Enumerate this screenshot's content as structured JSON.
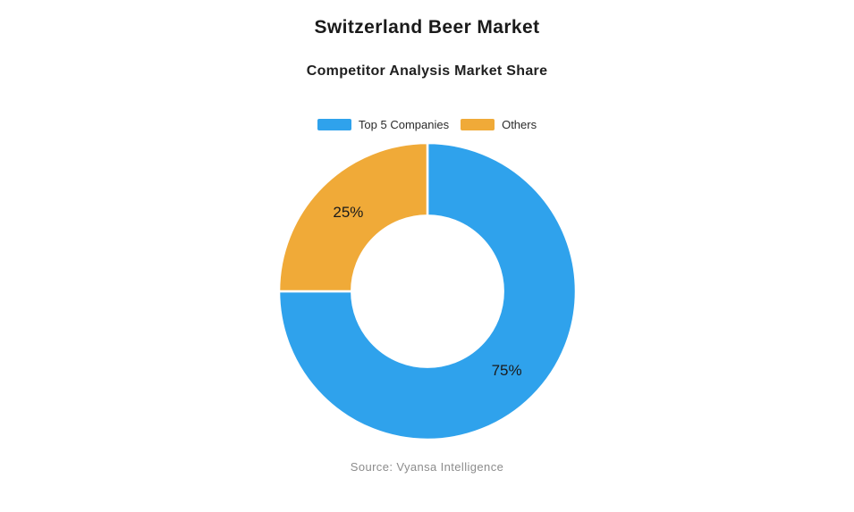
{
  "chart_data": {
    "type": "pie",
    "variant": "donut",
    "title": "Switzerland Beer Market",
    "subtitle": "Competitor Analysis Market Share",
    "categories": [
      "Top 5 Companies",
      "Others"
    ],
    "values": [
      75,
      25
    ],
    "unit": "%",
    "data_labels": [
      "75%",
      "25%"
    ],
    "colors": [
      "#2FA2EC",
      "#F0AA38"
    ],
    "label_color": "#1a1a1a",
    "legend_position": "top",
    "start_angle_deg": 0,
    "direction": "clockwise",
    "inner_radius_ratio": 0.51,
    "source": "Source: Vyansa Intelligence"
  }
}
